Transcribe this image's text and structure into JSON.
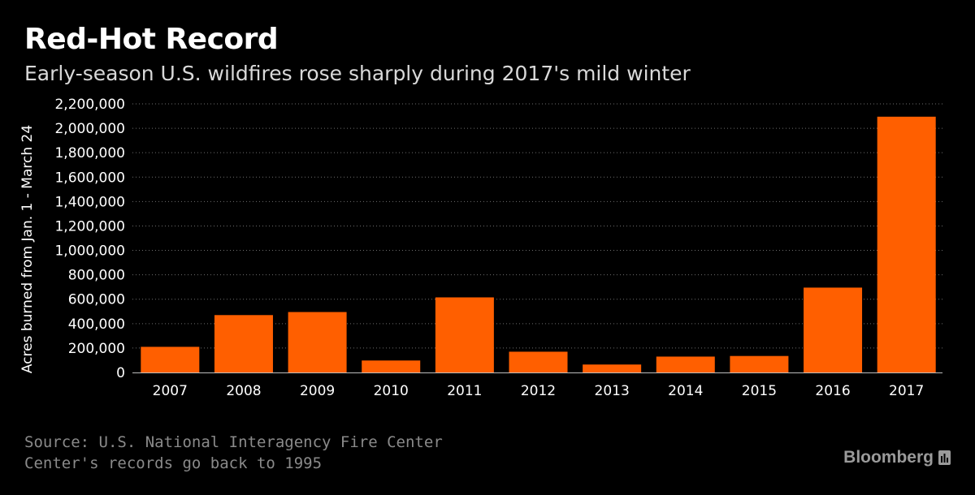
{
  "header": {
    "title": "Red-Hot Record",
    "subtitle": "Early-season U.S. wildfires rose sharply during 2017's mild winter"
  },
  "footer": {
    "source": "Source: U.S. National Interagency Fire Center",
    "note": "Center's records go back to 1995",
    "brand": "Bloomberg"
  },
  "colors": {
    "bar": "#ff5f00",
    "background": "#000000",
    "text": "#ffffff"
  },
  "chart_data": {
    "type": "bar",
    "title": "Red-Hot Record",
    "subtitle": "Early-season U.S. wildfires rose sharply during 2017's mild winter",
    "xlabel": "",
    "ylabel": "Acres burned from Jan. 1 - March 24",
    "categories": [
      "2007",
      "2008",
      "2009",
      "2010",
      "2011",
      "2012",
      "2013",
      "2014",
      "2015",
      "2016",
      "2017"
    ],
    "values": [
      210000,
      470000,
      495000,
      98000,
      615000,
      170000,
      65000,
      130000,
      135000,
      695000,
      2095000
    ],
    "ylim": [
      0,
      2200000
    ],
    "yticks": [
      0,
      200000,
      400000,
      600000,
      800000,
      1000000,
      1200000,
      1400000,
      1600000,
      1800000,
      2000000,
      2200000
    ],
    "ytick_labels": [
      "0",
      "200,000",
      "400,000",
      "600,000",
      "800,000",
      "1,000,000",
      "1,200,000",
      "1,400,000",
      "1,600,000",
      "1,800,000",
      "2,000,000",
      "2,200,000"
    ],
    "grid": true,
    "legend": "none"
  }
}
